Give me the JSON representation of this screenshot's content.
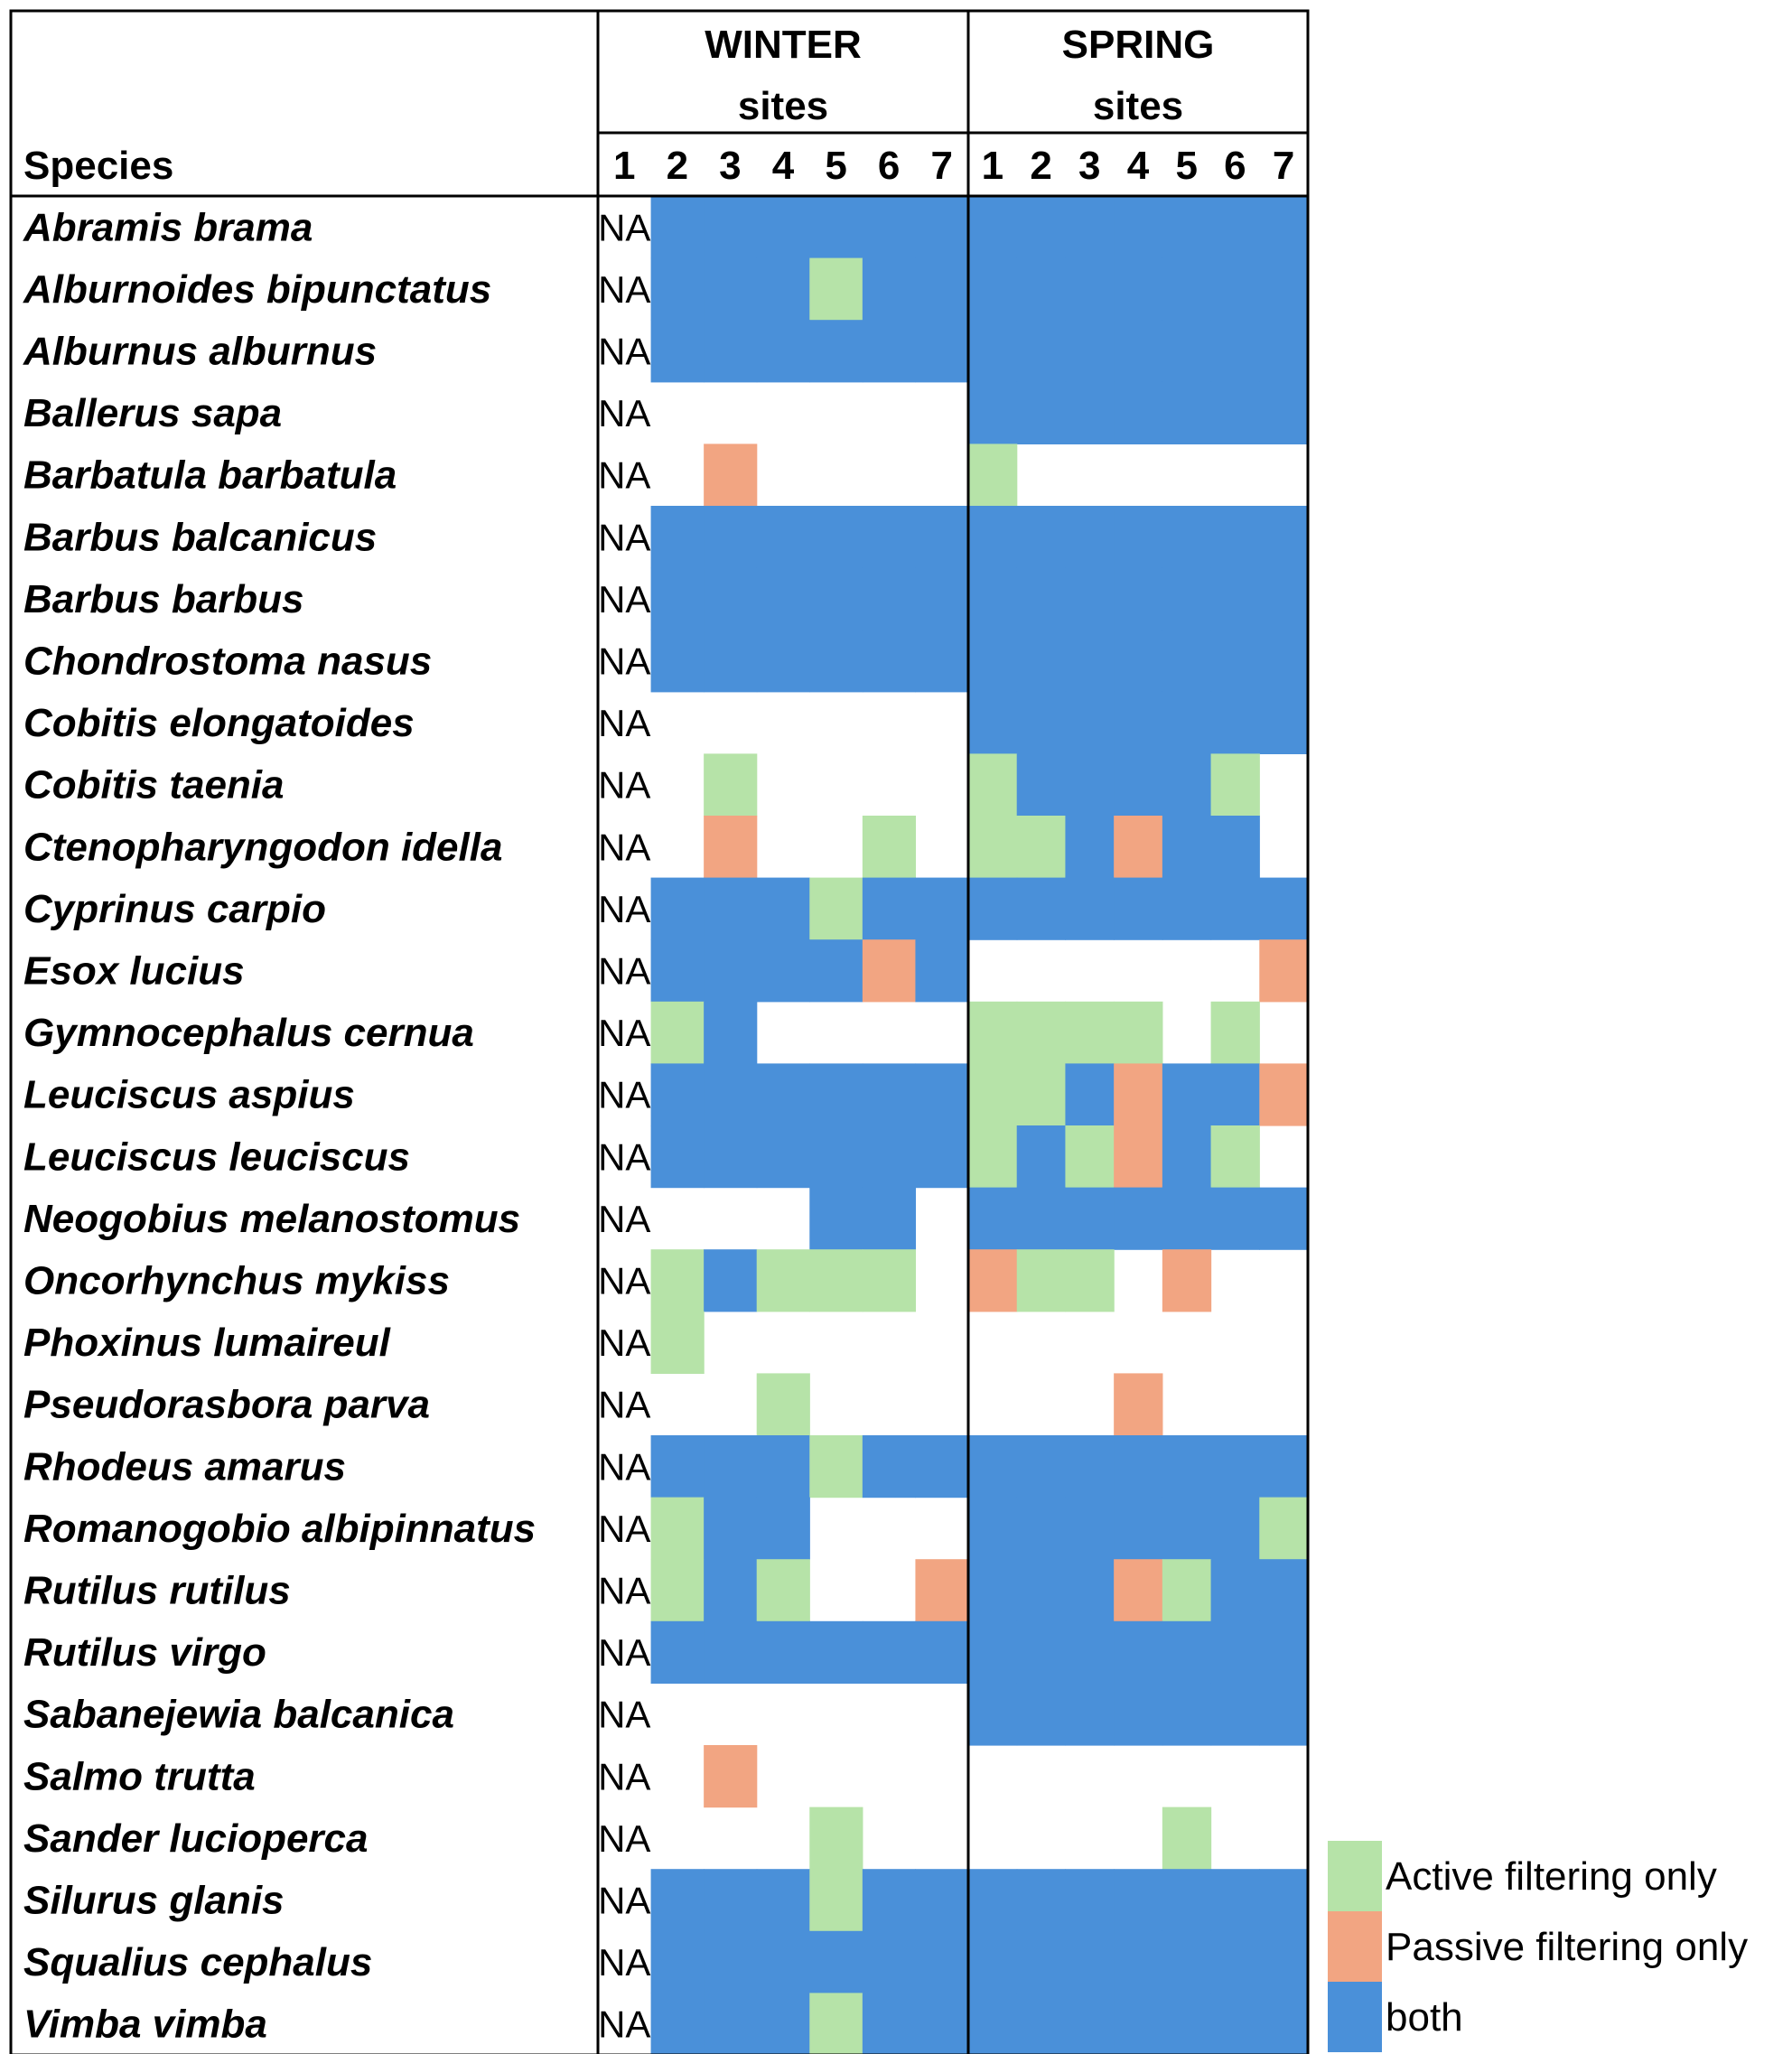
{
  "chart_data": {
    "type": "heatmap",
    "species_header": "Species",
    "seasons": [
      {
        "name": "WINTER",
        "subtitle": "sites"
      },
      {
        "name": "SPRING",
        "subtitle": "sites"
      }
    ],
    "sites": [
      "1",
      "2",
      "3",
      "4",
      "5",
      "6",
      "7"
    ],
    "na_label": "NA",
    "codes": {
      "A": "Active filtering only",
      "P": "Passive filtering only",
      "B": "both",
      ".": "not detected",
      "N": "NA"
    },
    "colors": {
      "A": "#b6e3a8",
      "P": "#f2a582",
      "B": "#4a90d9"
    },
    "legend": [
      {
        "code": "A",
        "label": "Active filtering only"
      },
      {
        "code": "P",
        "label": "Passive filtering only"
      },
      {
        "code": "B",
        "label": "both"
      }
    ],
    "rows": [
      {
        "species": "Abramis brama",
        "winter": "NBBBBBB",
        "spring": "BBBBBBB"
      },
      {
        "species": "Alburnoides bipunctatus",
        "winter": "NBBBABB",
        "spring": "BBBBBBB"
      },
      {
        "species": "Alburnus alburnus",
        "winter": "NBBBBBB",
        "spring": "BBBBBBB"
      },
      {
        "species": "Ballerus sapa",
        "winter": "N......",
        "spring": "BBBBBBB"
      },
      {
        "species": "Barbatula barbatula",
        "winter": "N.P....",
        "spring": "A......"
      },
      {
        "species": "Barbus balcanicus",
        "winter": "NBBBBBB",
        "spring": "BBBBBBB"
      },
      {
        "species": "Barbus barbus",
        "winter": "NBBBBBB",
        "spring": "BBBBBBB"
      },
      {
        "species": "Chondrostoma nasus",
        "winter": "NBBBBBB",
        "spring": "BBBBBBB"
      },
      {
        "species": "Cobitis elongatoides",
        "winter": "N......",
        "spring": "BBBBBBB"
      },
      {
        "species": "Cobitis taenia",
        "winter": "N.A....",
        "spring": "ABBBBA."
      },
      {
        "species": "Ctenopharyngodon idella",
        "winter": "N.P..A.",
        "spring": "AABPBB."
      },
      {
        "species": "Cyprinus carpio",
        "winter": "NBBBABB",
        "spring": "BBBBBBB"
      },
      {
        "species": "Esox lucius",
        "winter": "NBBBBPB",
        "spring": "......P"
      },
      {
        "species": "Gymnocephalus cernua",
        "winter": "NAB....",
        "spring": "AAAA.A."
      },
      {
        "species": "Leuciscus aspius",
        "winter": "NBBBBBB",
        "spring": "AABPBBP"
      },
      {
        "species": "Leuciscus leuciscus",
        "winter": "NBBBBBB",
        "spring": "ABAPBA."
      },
      {
        "species": "Neogobius melanostomus",
        "winter": "N...BB.",
        "spring": "BBBBBBB"
      },
      {
        "species": "Oncorhynchus mykiss",
        "winter": "NABAAA.",
        "spring": "PAA.P.."
      },
      {
        "species": "Phoxinus lumaireul",
        "winter": "NA.....",
        "spring": "......."
      },
      {
        "species": "Pseudorasbora parva",
        "winter": "N..A...",
        "spring": "...P..."
      },
      {
        "species": "Rhodeus amarus",
        "winter": "NBBBABB",
        "spring": "BBBBBBB"
      },
      {
        "species": "Romanogobio albipinnatus",
        "winter": "NABB...",
        "spring": "BBBBBBA"
      },
      {
        "species": "Rutilus rutilus",
        "winter": "NABA..P",
        "spring": "BBBPABB"
      },
      {
        "species": "Rutilus virgo",
        "winter": "NBBBBBB",
        "spring": "BBBBBBB"
      },
      {
        "species": "Sabanejewia balcanica",
        "winter": "N......",
        "spring": "BBBBBBB"
      },
      {
        "species": "Salmo trutta",
        "winter": "N.P....",
        "spring": "......."
      },
      {
        "species": "Sander lucioperca",
        "winter": "N...A..",
        "spring": "....A.."
      },
      {
        "species": "Silurus glanis",
        "winter": "NBBBABB",
        "spring": "BBBBBBB"
      },
      {
        "species": "Squalius cephalus",
        "winter": "NBBBBBB",
        "spring": "BBBBBBB"
      },
      {
        "species": "Vimba vimba",
        "winter": "NBBBABB",
        "spring": "BBBBBBB"
      }
    ]
  }
}
